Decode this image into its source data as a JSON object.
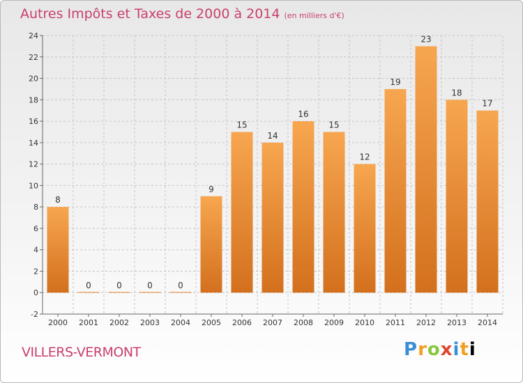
{
  "title": "Autres Impôts et Taxes de 2000 à 2014",
  "subtitle": "(en milliers d'€)",
  "place": "VILLERS-VERMONT",
  "brand": "Proxiti",
  "colors": {
    "title": "#c8406a",
    "bar_light": "#f7a650",
    "bar_dark": "#d3701d"
  },
  "chart_data": {
    "type": "bar",
    "title": "Autres Impôts et Taxes de 2000 à 2014",
    "subtitle": "(en milliers d'€)",
    "categories": [
      "2000",
      "2001",
      "2002",
      "2003",
      "2004",
      "2005",
      "2006",
      "2007",
      "2008",
      "2009",
      "2010",
      "2011",
      "2012",
      "2013",
      "2014"
    ],
    "values": [
      8,
      0,
      0,
      0,
      0,
      9,
      15,
      14,
      16,
      15,
      12,
      19,
      23,
      18,
      17
    ],
    "ylim": [
      -2,
      24
    ],
    "yticks": [
      -2,
      0,
      2,
      4,
      6,
      8,
      10,
      12,
      14,
      16,
      18,
      20,
      22,
      24
    ],
    "grid": true,
    "data_labels": true
  }
}
